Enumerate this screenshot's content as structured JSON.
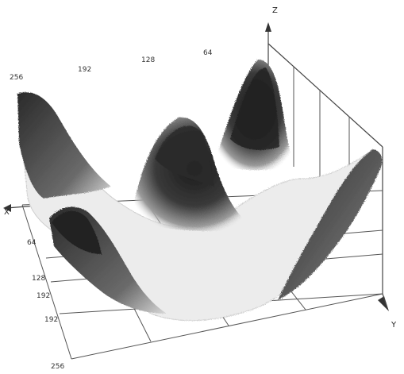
{
  "chart_data": {
    "type": "surface",
    "title": "",
    "axes": {
      "x": {
        "label": "X",
        "ticks": [
          "256",
          "192",
          "128",
          "64"
        ]
      },
      "y": {
        "label": "Y",
        "ticks": [
          "64",
          "128",
          "192",
          "256"
        ]
      },
      "z": {
        "label": "Z"
      }
    },
    "left_edge_ticks": [
      "64",
      "128",
      "192",
      "256"
    ],
    "peaks": [
      "back-left",
      "back-center",
      "back-right",
      "front-right",
      "front-left"
    ],
    "shading": "grayscale"
  },
  "colors": {
    "background": "#ffffff",
    "surface_dark": "#1e1e1e",
    "surface_light": "#e6e6e6",
    "grid": "#555555"
  }
}
